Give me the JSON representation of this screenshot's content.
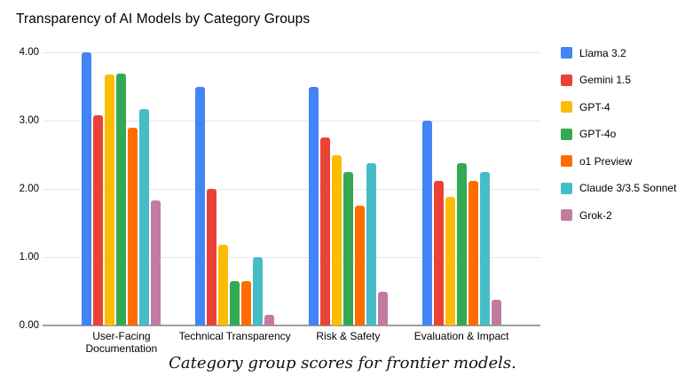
{
  "chart_data": {
    "type": "bar",
    "title": "Transparency of AI Models by Category Groups",
    "caption": "Category group scores for frontier models.",
    "categories": [
      "User-Facing Documentation",
      "Technical Transparency",
      "Risk & Safety",
      "Evaluation & Impact"
    ],
    "x_tick_labels": [
      "User-Facing\nDocumentation",
      "Technical Transparency",
      "Risk & Safety",
      "Evaluation & Impact"
    ],
    "series": [
      {
        "name": "Llama 3.2",
        "color": "#4285F4",
        "values": [
          4.0,
          3.5,
          3.5,
          3.0
        ]
      },
      {
        "name": "Gemini 1.5",
        "color": "#EA4335",
        "values": [
          3.08,
          2.0,
          2.75,
          2.12
        ]
      },
      {
        "name": "GPT-4",
        "color": "#FBBC04",
        "values": [
          3.67,
          1.18,
          2.5,
          1.88
        ]
      },
      {
        "name": "GPT-4o",
        "color": "#34A853",
        "values": [
          3.69,
          0.65,
          2.25,
          2.38
        ]
      },
      {
        "name": "o1 Preview",
        "color": "#FF6D01",
        "values": [
          2.89,
          0.65,
          1.75,
          2.12
        ]
      },
      {
        "name": "Claude 3/3.5 Sonnet",
        "color": "#46BDC6",
        "values": [
          3.17,
          1.0,
          2.38,
          2.25
        ]
      },
      {
        "name": "Grok-2",
        "color": "#C27BA0",
        "values": [
          1.83,
          0.16,
          0.5,
          0.38
        ]
      }
    ],
    "ylabel": "",
    "xlabel": "",
    "ylim": [
      0,
      4
    ],
    "y_ticks": [
      "4.00",
      "3.00",
      "2.00",
      "1.00",
      "0.00"
    ],
    "grid": true,
    "legend_position": "right",
    "colors": {
      "background": "#ffffff",
      "gridline": "#e6e6e6",
      "axis_baseline": "#9e9e9e",
      "text": "#000000"
    }
  }
}
